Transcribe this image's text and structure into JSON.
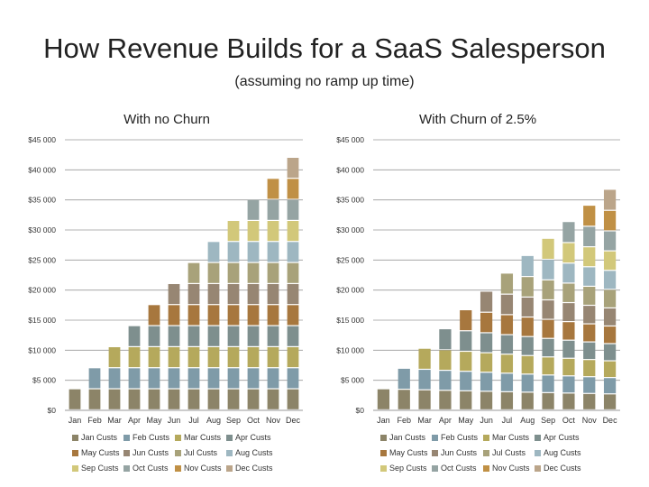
{
  "title": "How Revenue Builds for a SaaS Salesperson",
  "subtitle": "(assuming no ramp up time)",
  "series_colors": [
    "#8c8468",
    "#7f9ba8",
    "#b5a95c",
    "#7e8f8e",
    "#a7773e",
    "#978673",
    "#a8a27a",
    "#9eb7c1",
    "#d2c87a",
    "#95a4a3",
    "#c09045",
    "#bba58a"
  ],
  "chart_data": [
    {
      "type": "bar",
      "stacked": true,
      "title": "With no Churn",
      "categories": [
        "Jan",
        "Feb",
        "Mar",
        "Apr",
        "May",
        "Jun",
        "Jul",
        "Aug",
        "Sep",
        "Oct",
        "Nov",
        "Dec"
      ],
      "ytick_labels": [
        "$0",
        "$5 000",
        "$10 000",
        "$15 000",
        "$20 000",
        "$25 000",
        "$30 000",
        "$35 000",
        "$40 000",
        "$45 000"
      ],
      "ylim": [
        0,
        45000
      ],
      "legend": [
        "Jan Custs",
        "Feb Custs",
        "Mar Custs",
        "Apr Custs",
        "May Custs",
        "Jun Custs",
        "Jul Custs",
        "Aug Custs",
        "Sep Custs",
        "Oct Custs",
        "Nov Custs",
        "Dec Custs"
      ],
      "series": [
        {
          "name": "Jan Custs",
          "values": [
            3500,
            3500,
            3500,
            3500,
            3500,
            3500,
            3500,
            3500,
            3500,
            3500,
            3500,
            3500
          ]
        },
        {
          "name": "Feb Custs",
          "values": [
            0,
            3500,
            3500,
            3500,
            3500,
            3500,
            3500,
            3500,
            3500,
            3500,
            3500,
            3500
          ]
        },
        {
          "name": "Mar Custs",
          "values": [
            0,
            0,
            3500,
            3500,
            3500,
            3500,
            3500,
            3500,
            3500,
            3500,
            3500,
            3500
          ]
        },
        {
          "name": "Apr Custs",
          "values": [
            0,
            0,
            0,
            3500,
            3500,
            3500,
            3500,
            3500,
            3500,
            3500,
            3500,
            3500
          ]
        },
        {
          "name": "May Custs",
          "values": [
            0,
            0,
            0,
            0,
            3500,
            3500,
            3500,
            3500,
            3500,
            3500,
            3500,
            3500
          ]
        },
        {
          "name": "Jun Custs",
          "values": [
            0,
            0,
            0,
            0,
            0,
            3500,
            3500,
            3500,
            3500,
            3500,
            3500,
            3500
          ]
        },
        {
          "name": "Jul Custs",
          "values": [
            0,
            0,
            0,
            0,
            0,
            0,
            3500,
            3500,
            3500,
            3500,
            3500,
            3500
          ]
        },
        {
          "name": "Aug Custs",
          "values": [
            0,
            0,
            0,
            0,
            0,
            0,
            0,
            3500,
            3500,
            3500,
            3500,
            3500
          ]
        },
        {
          "name": "Sep Custs",
          "values": [
            0,
            0,
            0,
            0,
            0,
            0,
            0,
            0,
            3500,
            3500,
            3500,
            3500
          ]
        },
        {
          "name": "Oct Custs",
          "values": [
            0,
            0,
            0,
            0,
            0,
            0,
            0,
            0,
            0,
            3500,
            3500,
            3500
          ]
        },
        {
          "name": "Nov Custs",
          "values": [
            0,
            0,
            0,
            0,
            0,
            0,
            0,
            0,
            0,
            0,
            3500,
            3500
          ]
        },
        {
          "name": "Dec Custs",
          "values": [
            0,
            0,
            0,
            0,
            0,
            0,
            0,
            0,
            0,
            0,
            0,
            3500
          ]
        }
      ]
    },
    {
      "type": "bar",
      "stacked": true,
      "title": "With Churn of 2.5%",
      "categories": [
        "Jan",
        "Feb",
        "Mar",
        "Apr",
        "May",
        "Jun",
        "Jul",
        "Aug",
        "Sep",
        "Oct",
        "Nov",
        "Dec"
      ],
      "ytick_labels": [
        "$0",
        "$5 000",
        "$10 000",
        "$15 000",
        "$20 000",
        "$25 000",
        "$30 000",
        "$35 000",
        "$40 000",
        "$45 000"
      ],
      "ylim": [
        0,
        45000
      ],
      "legend": [
        "Jan Custs",
        "Feb Custs",
        "Mar Custs",
        "Apr Custs",
        "May Custs",
        "Jun Custs",
        "Jul Custs",
        "Aug Custs",
        "Sep Custs",
        "Oct Custs",
        "Nov Custs",
        "Dec Custs"
      ],
      "series": [
        {
          "name": "Jan Custs",
          "values": [
            3500,
            3413,
            3327,
            3244,
            3163,
            3084,
            3007,
            2931,
            2858,
            2787,
            2717,
            2649
          ]
        },
        {
          "name": "Feb Custs",
          "values": [
            0,
            3500,
            3413,
            3327,
            3244,
            3163,
            3084,
            3007,
            2931,
            2858,
            2787,
            2717
          ]
        },
        {
          "name": "Mar Custs",
          "values": [
            0,
            0,
            3500,
            3413,
            3327,
            3244,
            3163,
            3084,
            3007,
            2931,
            2858,
            2787
          ]
        },
        {
          "name": "Apr Custs",
          "values": [
            0,
            0,
            0,
            3500,
            3413,
            3327,
            3244,
            3163,
            3084,
            3007,
            2931,
            2858
          ]
        },
        {
          "name": "May Custs",
          "values": [
            0,
            0,
            0,
            0,
            3500,
            3413,
            3327,
            3244,
            3163,
            3084,
            3007,
            2931
          ]
        },
        {
          "name": "Jun Custs",
          "values": [
            0,
            0,
            0,
            0,
            0,
            3500,
            3413,
            3327,
            3244,
            3163,
            3084,
            3007
          ]
        },
        {
          "name": "Jul Custs",
          "values": [
            0,
            0,
            0,
            0,
            0,
            0,
            3500,
            3413,
            3327,
            3244,
            3163,
            3084
          ]
        },
        {
          "name": "Aug Custs",
          "values": [
            0,
            0,
            0,
            0,
            0,
            0,
            0,
            3500,
            3413,
            3327,
            3244,
            3163
          ]
        },
        {
          "name": "Sep Custs",
          "values": [
            0,
            0,
            0,
            0,
            0,
            0,
            0,
            0,
            3500,
            3413,
            3327,
            3244
          ]
        },
        {
          "name": "Oct Custs",
          "values": [
            0,
            0,
            0,
            0,
            0,
            0,
            0,
            0,
            0,
            3500,
            3413,
            3327
          ]
        },
        {
          "name": "Nov Custs",
          "values": [
            0,
            0,
            0,
            0,
            0,
            0,
            0,
            0,
            0,
            0,
            3500,
            3413
          ]
        },
        {
          "name": "Dec Custs",
          "values": [
            0,
            0,
            0,
            0,
            0,
            0,
            0,
            0,
            0,
            0,
            0,
            3500
          ]
        }
      ]
    }
  ]
}
